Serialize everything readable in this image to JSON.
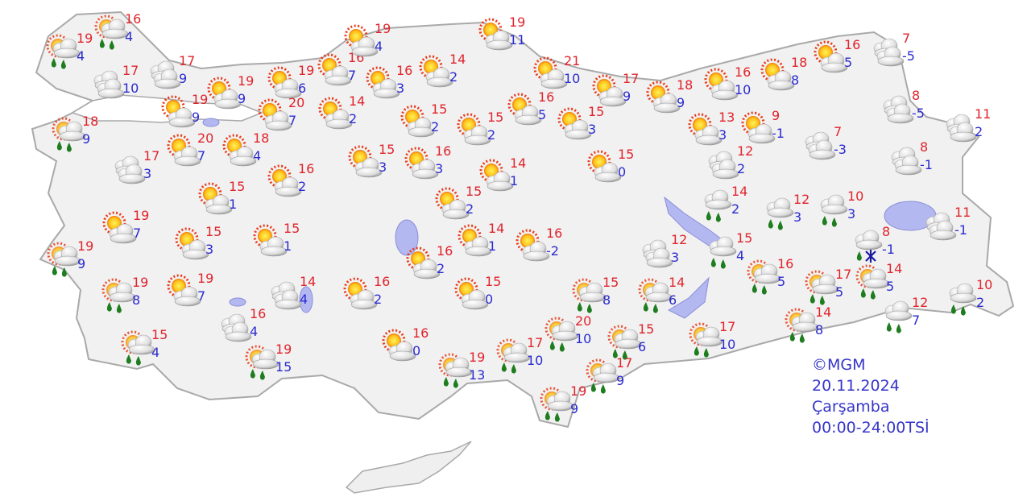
{
  "legend": {
    "copyright": "©MGM",
    "date": "20.11.2024",
    "day": "Çarşamba",
    "period": "00:00-24:00TSİ"
  },
  "colors": {
    "max_temp": "#e0242c",
    "min_temp": "#2a2ad0",
    "land": "#f1f1f1",
    "border": "#a9a9a9",
    "lake": "#b4b8f0",
    "rain": "#1e7d1e"
  },
  "stations": [
    {
      "icon": "sun-shower-icon",
      "max": "19",
      "min": "4"
    },
    {
      "icon": "sun-shower-icon",
      "max": "16",
      "min": "4"
    },
    {
      "icon": "cloudy-icon",
      "max": "17",
      "min": "10"
    },
    {
      "icon": "cloudy-icon",
      "max": "17",
      "min": "9"
    },
    {
      "icon": "sun-shower-icon",
      "max": "18",
      "min": "9"
    },
    {
      "icon": "partly-cloudy-icon",
      "max": "19",
      "min": "9"
    },
    {
      "icon": "partly-cloudy-icon",
      "max": "19",
      "min": "9"
    },
    {
      "icon": "partly-cloudy-icon",
      "max": "19",
      "min": "6"
    },
    {
      "icon": "partly-cloudy-icon",
      "max": "16",
      "min": "7"
    },
    {
      "icon": "partly-cloudy-icon",
      "max": "19",
      "min": "4"
    },
    {
      "icon": "partly-cloudy-icon",
      "max": "16",
      "min": "3"
    },
    {
      "icon": "partly-cloudy-icon",
      "max": "14",
      "min": "2"
    },
    {
      "icon": "partly-cloudy-icon",
      "max": "19",
      "min": "11"
    },
    {
      "icon": "partly-cloudy-icon",
      "max": "20",
      "min": "7"
    },
    {
      "icon": "partly-cloudy-icon",
      "max": "14",
      "min": "2"
    },
    {
      "icon": "partly-cloudy-icon",
      "max": "15",
      "min": "2"
    },
    {
      "icon": "partly-cloudy-icon",
      "max": "15",
      "min": "2"
    },
    {
      "icon": "partly-cloudy-icon",
      "max": "21",
      "min": "10"
    },
    {
      "icon": "partly-cloudy-icon",
      "max": "16",
      "min": "5"
    },
    {
      "icon": "partly-cloudy-icon",
      "max": "17",
      "min": "9"
    },
    {
      "icon": "partly-cloudy-icon",
      "max": "18",
      "min": "9"
    },
    {
      "icon": "partly-cloudy-icon",
      "max": "16",
      "min": "10"
    },
    {
      "icon": "partly-cloudy-icon",
      "max": "18",
      "min": "8"
    },
    {
      "icon": "partly-cloudy-icon",
      "max": "16",
      "min": "5"
    },
    {
      "icon": "cloudy-icon",
      "max": "7",
      "min": "-5"
    },
    {
      "icon": "cloudy-icon",
      "max": "8",
      "min": "-5"
    },
    {
      "icon": "cloudy-icon",
      "max": "11",
      "min": "2"
    },
    {
      "icon": "cloudy-icon",
      "max": "8",
      "min": "-1"
    },
    {
      "icon": "partly-cloudy-icon",
      "max": "9",
      "min": "-1"
    },
    {
      "icon": "partly-cloudy-icon",
      "max": "13",
      "min": "3"
    },
    {
      "icon": "partly-cloudy-icon",
      "max": "15",
      "min": "3"
    },
    {
      "icon": "partly-cloudy-icon",
      "max": "15",
      "min": "0"
    },
    {
      "icon": "cloudy-icon",
      "max": "12",
      "min": "2"
    },
    {
      "icon": "cloudy-icon",
      "max": "7",
      "min": "-3"
    },
    {
      "icon": "partly-cloudy-icon",
      "max": "20",
      "min": "7"
    },
    {
      "icon": "partly-cloudy-icon",
      "max": "18",
      "min": "4"
    },
    {
      "icon": "cloudy-icon",
      "max": "17",
      "min": "3"
    },
    {
      "icon": "partly-cloudy-icon",
      "max": "16",
      "min": "2"
    },
    {
      "icon": "partly-cloudy-icon",
      "max": "15",
      "min": "3"
    },
    {
      "icon": "partly-cloudy-icon",
      "max": "16",
      "min": "3"
    },
    {
      "icon": "partly-cloudy-icon",
      "max": "14",
      "min": "1"
    },
    {
      "icon": "partly-cloudy-icon",
      "max": "15",
      "min": "1"
    },
    {
      "icon": "partly-cloudy-icon",
      "max": "15",
      "min": "2"
    },
    {
      "icon": "partly-cloudy-icon",
      "max": "19",
      "min": "7"
    },
    {
      "icon": "partly-cloudy-icon",
      "max": "15",
      "min": "3"
    },
    {
      "icon": "partly-cloudy-icon",
      "max": "15",
      "min": "1"
    },
    {
      "icon": "partly-cloudy-icon",
      "max": "16",
      "min": "2"
    },
    {
      "icon": "partly-cloudy-icon",
      "max": "14",
      "min": "1"
    },
    {
      "icon": "partly-cloudy-icon",
      "max": "16",
      "min": "-2"
    },
    {
      "icon": "sun-shower-icon",
      "max": "19",
      "min": "9"
    },
    {
      "icon": "sun-shower-icon",
      "max": "19",
      "min": "8"
    },
    {
      "icon": "partly-cloudy-icon",
      "max": "19",
      "min": "7"
    },
    {
      "icon": "cloudy-icon",
      "max": "14",
      "min": "4"
    },
    {
      "icon": "partly-cloudy-icon",
      "max": "16",
      "min": "2"
    },
    {
      "icon": "partly-cloudy-icon",
      "max": "15",
      "min": "0"
    },
    {
      "icon": "sun-shower-icon",
      "max": "15",
      "min": "4"
    },
    {
      "icon": "cloudy-icon",
      "max": "16",
      "min": "4"
    },
    {
      "icon": "sun-shower-icon",
      "max": "19",
      "min": "15"
    },
    {
      "icon": "partly-cloudy-icon",
      "max": "16",
      "min": "0"
    },
    {
      "icon": "sun-shower-icon",
      "max": "19",
      "min": "13"
    },
    {
      "icon": "sun-shower-icon",
      "max": "17",
      "min": "10"
    },
    {
      "icon": "sun-shower-icon",
      "max": "20",
      "min": "10"
    },
    {
      "icon": "sun-shower-icon",
      "max": "15",
      "min": "8"
    },
    {
      "icon": "sun-shower-icon",
      "max": "14",
      "min": "6"
    },
    {
      "icon": "sun-shower-icon",
      "max": "15",
      "min": "6"
    },
    {
      "icon": "sun-shower-icon",
      "max": "17",
      "min": "9"
    },
    {
      "icon": "sun-shower-icon",
      "max": "19",
      "min": "9"
    },
    {
      "icon": "sun-shower-icon",
      "max": "17",
      "min": "10"
    },
    {
      "icon": "cloudy-icon",
      "max": "12",
      "min": "3"
    },
    {
      "icon": "rain-icon",
      "max": "14",
      "min": "2"
    },
    {
      "icon": "rain-icon",
      "max": "12",
      "min": "3"
    },
    {
      "icon": "rain-icon",
      "max": "10",
      "min": "3"
    },
    {
      "icon": "rain-snow-icon",
      "max": "8",
      "min": "-1"
    },
    {
      "icon": "cloudy-icon",
      "max": "11",
      "min": "-1"
    },
    {
      "icon": "rain-icon",
      "max": "15",
      "min": "4"
    },
    {
      "icon": "sun-shower-icon",
      "max": "16",
      "min": "5"
    },
    {
      "icon": "sun-shower-icon",
      "max": "17",
      "min": "5"
    },
    {
      "icon": "sun-shower-icon",
      "max": "14",
      "min": "5"
    },
    {
      "icon": "rain-icon",
      "max": "10",
      "min": "2"
    },
    {
      "icon": "rain-icon",
      "max": "12",
      "min": "7"
    },
    {
      "icon": "sun-shower-icon",
      "max": "14",
      "min": "8"
    }
  ]
}
